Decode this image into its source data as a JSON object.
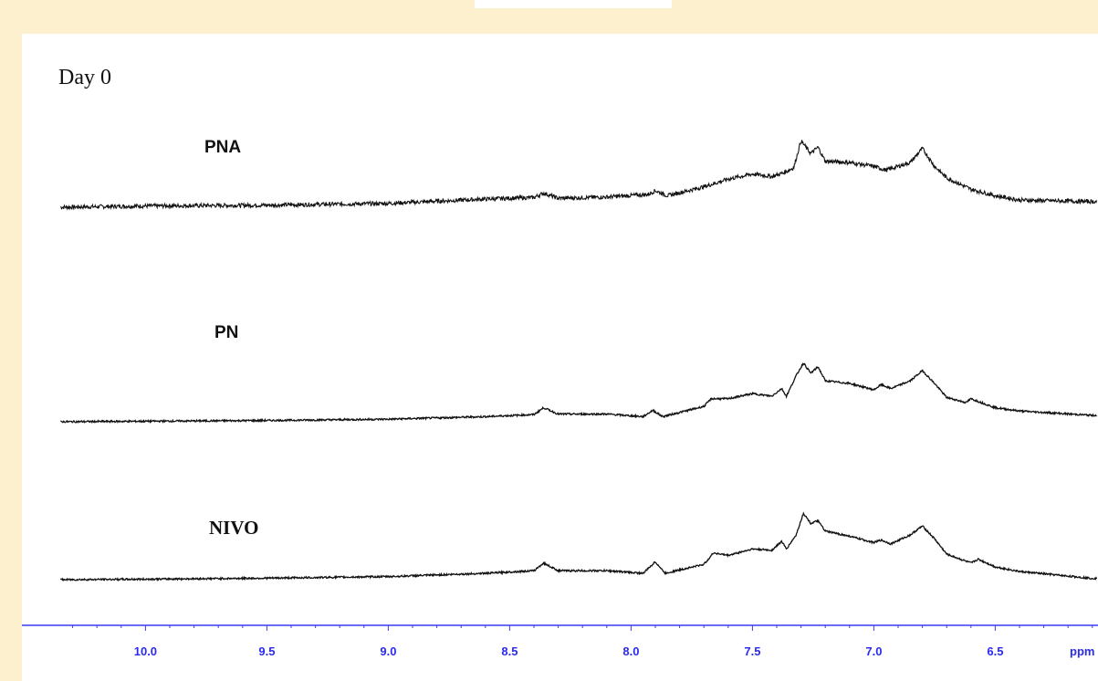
{
  "panel_title": "Day 0",
  "colors": {
    "page_bg": "#fdf0cf",
    "axis": "#3a3af5",
    "trace": "#111111"
  },
  "chart_data": {
    "type": "line",
    "title": "Day 0",
    "xlabel": "ppm",
    "x_axis": {
      "range": [
        10.4,
        6.1
      ],
      "reversed": true,
      "ticks": [
        10.0,
        9.5,
        9.0,
        8.5,
        8.0,
        7.5,
        7.0,
        6.5
      ],
      "tick_labels": [
        "10.0",
        "9.5",
        "9.0",
        "8.5",
        "8.0",
        "7.5",
        "7.0",
        "6.5"
      ],
      "unit_label": "ppm"
    },
    "y_axis": {
      "visible": false,
      "units": "relative intensity"
    },
    "grid": false,
    "series": [
      {
        "name": "PNA",
        "noise": 0.08,
        "x": [
          10.35,
          10.0,
          9.5,
          9.0,
          8.6,
          8.4,
          8.36,
          8.3,
          8.1,
          7.93,
          7.9,
          7.85,
          7.7,
          7.6,
          7.5,
          7.42,
          7.37,
          7.33,
          7.3,
          7.26,
          7.23,
          7.2,
          7.1,
          7.0,
          6.95,
          6.9,
          6.85,
          6.8,
          6.75,
          6.7,
          6.6,
          6.5,
          6.4,
          6.1
        ],
        "values": [
          0.0,
          0.05,
          0.08,
          0.15,
          0.32,
          0.38,
          0.55,
          0.35,
          0.4,
          0.5,
          0.65,
          0.45,
          0.8,
          1.1,
          1.3,
          1.2,
          1.35,
          1.55,
          2.6,
          2.1,
          2.35,
          1.8,
          1.75,
          1.6,
          1.45,
          1.6,
          1.75,
          2.3,
          1.6,
          1.15,
          0.7,
          0.45,
          0.28,
          0.22
        ]
      },
      {
        "name": "PN",
        "noise": 0.035,
        "x": [
          10.35,
          10.0,
          9.5,
          9.0,
          8.6,
          8.4,
          8.36,
          8.3,
          8.1,
          7.95,
          7.91,
          7.87,
          7.7,
          7.67,
          7.6,
          7.5,
          7.42,
          7.38,
          7.36,
          7.32,
          7.29,
          7.26,
          7.23,
          7.2,
          7.1,
          7.0,
          6.97,
          6.93,
          6.85,
          6.8,
          6.75,
          6.7,
          6.62,
          6.6,
          6.5,
          6.4,
          6.1
        ],
        "values": [
          0.0,
          0.02,
          0.05,
          0.1,
          0.2,
          0.28,
          0.55,
          0.3,
          0.3,
          0.2,
          0.45,
          0.2,
          0.6,
          0.9,
          0.9,
          1.1,
          1.0,
          1.3,
          1.0,
          1.8,
          2.3,
          1.9,
          2.15,
          1.6,
          1.5,
          1.25,
          1.45,
          1.3,
          1.6,
          2.0,
          1.5,
          0.95,
          0.75,
          0.9,
          0.55,
          0.42,
          0.25
        ]
      },
      {
        "name": "NIVO",
        "noise": 0.035,
        "x": [
          10.35,
          10.0,
          9.5,
          9.0,
          8.6,
          8.4,
          8.36,
          8.3,
          8.1,
          7.95,
          7.9,
          7.86,
          7.7,
          7.66,
          7.6,
          7.5,
          7.42,
          7.38,
          7.36,
          7.32,
          7.29,
          7.26,
          7.23,
          7.2,
          7.1,
          7.0,
          6.97,
          6.93,
          6.85,
          6.8,
          6.75,
          6.7,
          6.6,
          6.57,
          6.5,
          6.4,
          6.1
        ],
        "values": [
          0.0,
          0.02,
          0.06,
          0.12,
          0.25,
          0.35,
          0.65,
          0.35,
          0.35,
          0.25,
          0.7,
          0.25,
          0.6,
          1.05,
          0.95,
          1.2,
          1.15,
          1.5,
          1.2,
          1.75,
          2.6,
          2.2,
          2.3,
          1.9,
          1.7,
          1.45,
          1.55,
          1.4,
          1.75,
          2.1,
          1.6,
          1.0,
          0.65,
          0.8,
          0.5,
          0.32,
          0.05
        ]
      }
    ],
    "legend": "none (series labeled directly above each trace)"
  }
}
